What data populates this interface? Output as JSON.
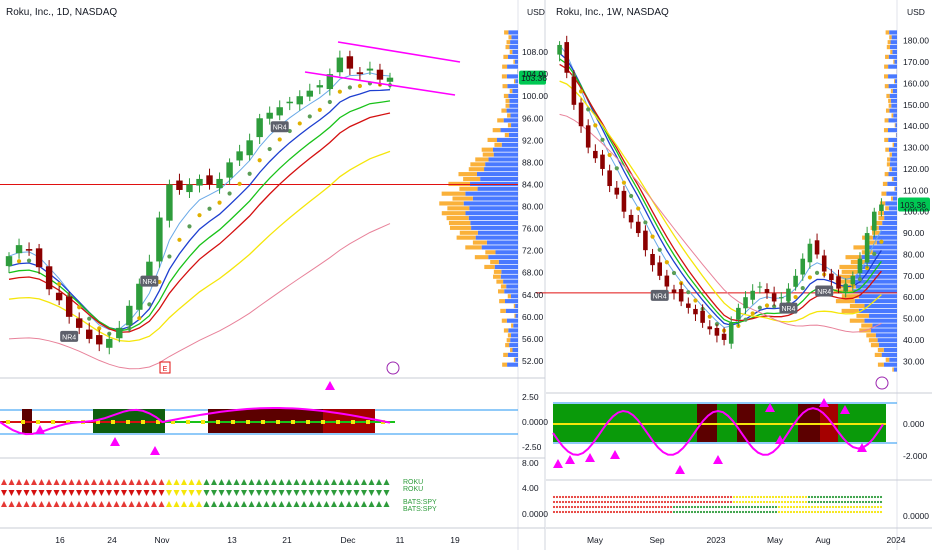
{
  "left_panel": {
    "title": "Roku, Inc., 1D, NASDAQ",
    "currency": "USD",
    "price_badge": "103.36",
    "price_axis": [
      "108.00",
      "104.00",
      "100.00",
      "96.00",
      "92.00",
      "88.00",
      "84.00",
      "80.00",
      "76.00",
      "72.00",
      "68.00",
      "64.00",
      "60.00",
      "56.00",
      "52.00"
    ],
    "osc_axis": [
      "2.50",
      "0.0000",
      "-2.50"
    ],
    "strip_axis": [
      "8.00",
      "4.00",
      "0.0000"
    ],
    "x_labels": [
      "16",
      "24",
      "Nov",
      "13",
      "21",
      "Dec",
      "11",
      "19"
    ],
    "markers": {
      "nr4": "NR4",
      "earnings": "E"
    },
    "strip_labels": [
      "ROKU",
      "ROKU",
      "BATS:SPY",
      "BATS:SPY"
    ]
  },
  "right_panel": {
    "title": "Roku, Inc., 1W, NASDAQ",
    "currency": "USD",
    "price_badge": "103.36",
    "price_axis": [
      "180.00",
      "170.00",
      "160.00",
      "150.00",
      "140.00",
      "130.00",
      "120.00",
      "110.00",
      "100.00",
      "90.00",
      "80.00",
      "70.00",
      "60.00",
      "50.00",
      "40.00",
      "30.00"
    ],
    "osc_axis": [
      "0.000",
      "-2.000"
    ],
    "strip_axis": [
      "0.0000"
    ],
    "x_labels": [
      "May",
      "Sep",
      "2023",
      "May",
      "Aug",
      "2024"
    ],
    "markers": {
      "nr4": "NR4"
    }
  },
  "colors": {
    "up": "#26a69a",
    "down": "#8b0000",
    "green_candle": "#2e9c3c",
    "ema_blue": "#1e3fd0",
    "ema_green": "#19c219",
    "ema_red": "#d41010",
    "ema_yellow": "#f5e60a",
    "ema_pink": "#e8829a",
    "magenta": "#ff00ff",
    "vp_orange": "#f9a825",
    "vp_blue": "#2962ff",
    "hline": "#e01010",
    "badge": "#00c853"
  },
  "chart_data": [
    {
      "type": "candlestick",
      "title": "Roku, Inc., 1D, NASDAQ",
      "ylim": [
        50,
        112
      ],
      "last_price": 103.36,
      "x_ticks": [
        "16",
        "24",
        "Nov",
        "13",
        "21",
        "Dec",
        "11",
        "19"
      ],
      "closes": [
        71,
        73,
        72,
        69,
        65,
        63,
        60,
        58,
        56,
        55,
        56,
        58,
        62,
        66,
        70,
        78,
        84,
        83,
        84,
        85,
        84,
        85,
        88,
        90,
        92,
        96,
        97,
        98,
        99,
        100,
        101,
        102,
        104,
        107,
        105,
        104,
        105,
        103,
        103.36
      ],
      "horizontal_line": 84
    },
    {
      "type": "candlestick",
      "title": "Roku, Inc., 1W, NASDAQ",
      "ylim": [
        25,
        185
      ],
      "last_price": 103.36,
      "x_ticks": [
        "May",
        "Sep",
        "2023",
        "May",
        "Aug",
        "2024"
      ],
      "closes": [
        178,
        165,
        150,
        140,
        130,
        125,
        120,
        112,
        108,
        100,
        95,
        90,
        82,
        75,
        70,
        65,
        62,
        58,
        55,
        52,
        48,
        45,
        42,
        40,
        48,
        55,
        60,
        63,
        65,
        62,
        58,
        60,
        64,
        70,
        78,
        85,
        80,
        72,
        68,
        64,
        66,
        70,
        78,
        90,
        100,
        103.36
      ],
      "horizontal_line": 62
    }
  ]
}
